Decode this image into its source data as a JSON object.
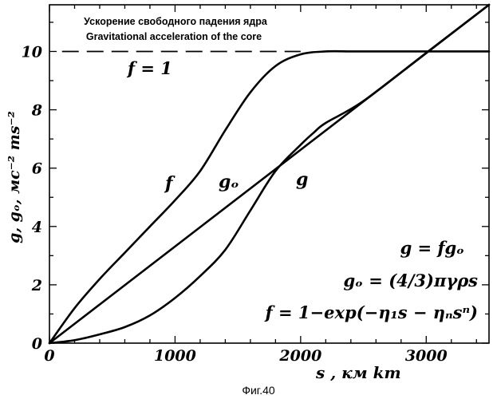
{
  "chart_data": {
    "type": "line",
    "xlabel": "s ,  км  km",
    "ylabel": "g, gₒ,  мс⁻² ms⁻²",
    "xlim": [
      0,
      3500
    ],
    "ylim": [
      0,
      11.6
    ],
    "x_ticks": [
      "0",
      "1000",
      "2000",
      "3000"
    ],
    "y_ticks": [
      "0",
      "2",
      "4",
      "6",
      "8",
      "10"
    ],
    "grid": false,
    "title_ru": "Ускорение свободного падения ядра",
    "title_en": "Gravitational acceleration of the core",
    "reference_line": {
      "y": 10,
      "label": "f = 1",
      "style": "dashed",
      "x_end": 2000
    },
    "series": [
      {
        "name": "f",
        "x": [
          0,
          200,
          400,
          600,
          800,
          1000,
          1200,
          1400,
          1600,
          1800,
          2000,
          2200,
          2400,
          2600,
          3000,
          3500
        ],
        "y": [
          0,
          1.2,
          2.2,
          3.1,
          4.0,
          4.9,
          5.9,
          7.3,
          8.6,
          9.5,
          9.9,
          10.0,
          10.0,
          10.0,
          10.0,
          10.0
        ]
      },
      {
        "name": "gₒ",
        "x": [
          0,
          3500
        ],
        "y": [
          0,
          11.6
        ]
      },
      {
        "name": "g",
        "x": [
          0,
          200,
          400,
          600,
          800,
          1000,
          1200,
          1400,
          1600,
          1800,
          2000,
          2100,
          2200,
          2500,
          3000,
          3500
        ],
        "y": [
          0,
          0.1,
          0.3,
          0.55,
          0.95,
          1.55,
          2.3,
          3.2,
          4.55,
          5.9,
          6.8,
          7.2,
          7.55,
          8.3,
          9.95,
          11.6
        ]
      }
    ],
    "annotations": [
      {
        "text": "f",
        "x": 970,
        "y": 5.3
      },
      {
        "text": "gₒ",
        "x": 1380,
        "y": 5.3
      },
      {
        "text": "g",
        "x": 2000,
        "y": 5.3
      }
    ],
    "formulas": [
      "g = fgₒ",
      "gₒ = (4/3)πγρs",
      "f = 1−exp(−η₁s − ηₙsⁿ)"
    ]
  },
  "caption": "Фиг.40"
}
